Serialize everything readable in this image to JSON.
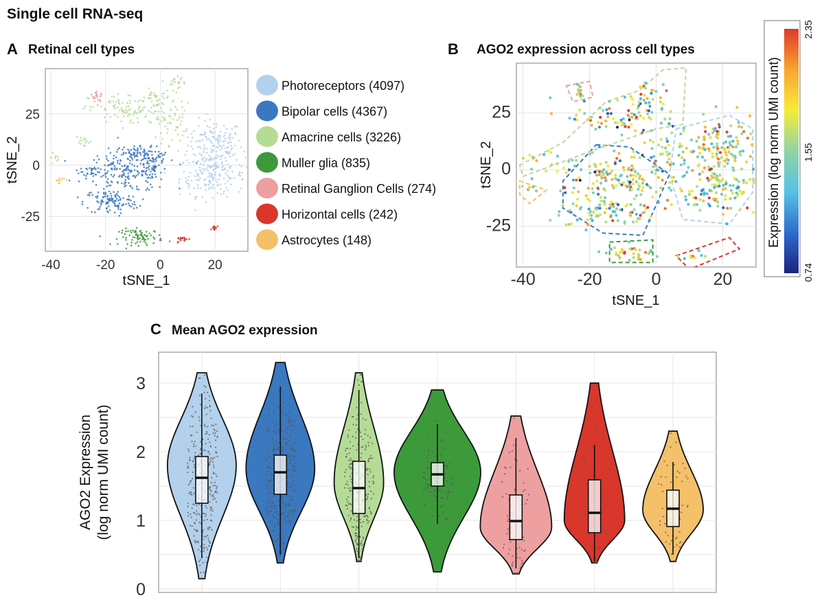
{
  "title": "Single cell RNA-seq",
  "colors": {
    "photoreceptors": "#b3d1ec",
    "bipolar": "#3a78c0",
    "amacrine": "#b5dc97",
    "muller": "#3c9a3a",
    "rgc": "#ee9fa0",
    "horizontal": "#d9362c",
    "astrocytes": "#f5c06a"
  },
  "panels": {
    "a": {
      "letter": "A",
      "title": "Retinal cell types"
    },
    "b": {
      "letter": "B",
      "title": "AGO2 expression across cell types"
    },
    "c": {
      "letter": "C",
      "title": "Mean AGO2 expression"
    }
  },
  "chart_data": [
    {
      "type": "scatter",
      "panel": "A",
      "title": "Retinal cell types",
      "xlabel": "tSNE_1",
      "ylabel": "tSNE_2",
      "xlim": [
        -42,
        32
      ],
      "ylim": [
        -42,
        47
      ],
      "xticks": [
        -40,
        -20,
        0,
        20
      ],
      "yticks": [
        -25,
        0,
        25
      ],
      "grid": true,
      "legend_position": "right",
      "legend": [
        {
          "name": "Photoreceptors (4097)",
          "color_key": "photoreceptors"
        },
        {
          "name": "Bipolar cells (4367)",
          "color_key": "bipolar"
        },
        {
          "name": "Amacrine cells (3226)",
          "color_key": "amacrine"
        },
        {
          "name": "Muller glia (835)",
          "color_key": "muller"
        },
        {
          "name": "Retinal Ganglion Cells (274)",
          "color_key": "rgc"
        },
        {
          "name": "Horizontal cells (242)",
          "color_key": "horizontal"
        },
        {
          "name": "Astrocytes (148)",
          "color_key": "astrocytes"
        }
      ],
      "clusters": [
        {
          "color_key": "photoreceptors",
          "cx": 20,
          "cy": 10,
          "sx": 5,
          "sy": 6,
          "n": 160
        },
        {
          "color_key": "photoreceptors",
          "cx": 19,
          "cy": -5,
          "sx": 6,
          "sy": 5,
          "n": 180
        },
        {
          "color_key": "bipolar",
          "cx": -12,
          "cy": -3,
          "sx": 8,
          "sy": 5,
          "n": 200
        },
        {
          "color_key": "bipolar",
          "cx": -18,
          "cy": -18,
          "sx": 5,
          "sy": 3,
          "n": 110
        },
        {
          "color_key": "bipolar",
          "cx": -3,
          "cy": 2,
          "sx": 3,
          "sy": 4,
          "n": 60
        },
        {
          "color_key": "bipolar",
          "cx": -25,
          "cy": -3,
          "sx": 1.5,
          "sy": 1.2,
          "n": 25
        },
        {
          "color_key": "bipolar",
          "cx": -10,
          "cy": 6,
          "sx": 4,
          "sy": 1.5,
          "n": 50
        },
        {
          "color_key": "amacrine",
          "cx": -10,
          "cy": 27,
          "sx": 8,
          "sy": 4,
          "n": 130
        },
        {
          "color_key": "amacrine",
          "cx": 5,
          "cy": 20,
          "sx": 3,
          "sy": 5,
          "n": 45
        },
        {
          "color_key": "amacrine",
          "cx": -2,
          "cy": 33,
          "sx": 3,
          "sy": 2,
          "n": 25
        },
        {
          "color_key": "amacrine",
          "cx": 6,
          "cy": 41,
          "sx": 3,
          "sy": 1.5,
          "n": 20
        },
        {
          "color_key": "amacrine",
          "cx": -28,
          "cy": 11,
          "sx": 1.5,
          "sy": 1.3,
          "n": 15
        },
        {
          "color_key": "amacrine",
          "cx": -39,
          "cy": 4,
          "sx": 1,
          "sy": 1.2,
          "n": 10
        },
        {
          "color_key": "muller",
          "cx": -7,
          "cy": -35,
          "sx": 4,
          "sy": 2,
          "n": 80
        },
        {
          "color_key": "rgc",
          "cx": -23,
          "cy": 33,
          "sx": 1.2,
          "sy": 1.2,
          "n": 20
        },
        {
          "color_key": "horizontal",
          "cx": 8,
          "cy": -36,
          "sx": 1.3,
          "sy": 0.6,
          "n": 18
        },
        {
          "color_key": "horizontal",
          "cx": 20,
          "cy": -31,
          "sx": 0.6,
          "sy": 0.9,
          "n": 12
        },
        {
          "color_key": "astrocytes",
          "cx": -37,
          "cy": -7,
          "sx": 1,
          "sy": 0.8,
          "n": 10
        }
      ]
    },
    {
      "type": "scatter",
      "panel": "B",
      "title": "AGO2 expression across cell types",
      "xlabel": "tSNE_1",
      "ylabel": "tSNE_2",
      "xlim": [
        -42,
        30
      ],
      "ylim": [
        -43,
        47
      ],
      "xticks": [
        -40,
        -20,
        0,
        20
      ],
      "yticks": [
        -25,
        0,
        25
      ],
      "grid": true,
      "colorbar": {
        "label": "Expression (log norm UMI count)",
        "min": 0.74,
        "max": 2.35,
        "ticks": [
          "0.74",
          "1.55",
          "2.35"
        ],
        "stops": [
          "#1a237e",
          "#2d6dcf",
          "#58c2e4",
          "#8fd3a6",
          "#f7ec3a",
          "#f9a431",
          "#dd3a28"
        ]
      },
      "cluster_outlines": [
        {
          "color_key": "photoreceptors",
          "points": [
            [
              6,
              18
            ],
            [
              22,
              24
            ],
            [
              29,
              18
            ],
            [
              29,
              -10
            ],
            [
              22,
              -24
            ],
            [
              8,
              -22
            ],
            [
              4,
              -2
            ]
          ]
        },
        {
          "color_key": "bipolar",
          "points": [
            [
              -18,
              11
            ],
            [
              -8,
              10
            ],
            [
              4,
              -2
            ],
            [
              -4,
              -29
            ],
            [
              -16,
              -28
            ],
            [
              -28,
              -17
            ],
            [
              -28,
              -5
            ]
          ]
        },
        {
          "color_key": "amacrine",
          "points": [
            [
              -41,
              2
            ],
            [
              -28,
              12
            ],
            [
              -15,
              30
            ],
            [
              -5,
              35
            ],
            [
              2,
              44
            ],
            [
              9,
              45
            ],
            [
              8,
              20
            ],
            [
              0,
              18
            ],
            [
              -18,
              9
            ],
            [
              -40,
              -3
            ]
          ]
        },
        {
          "color_key": "rgc",
          "points": [
            [
              -27,
              37
            ],
            [
              -20,
              39
            ],
            [
              -19,
              32
            ],
            [
              -25,
              30
            ]
          ]
        },
        {
          "color_key": "muller",
          "points": [
            [
              -14,
              -32
            ],
            [
              -1,
              -31
            ],
            [
              -1,
              -41
            ],
            [
              -14,
              -41
            ]
          ]
        },
        {
          "color_key": "horizontal",
          "points": [
            [
              6,
              -38
            ],
            [
              22,
              -30
            ],
            [
              25,
              -35
            ],
            [
              10,
              -44
            ]
          ]
        },
        {
          "color_key": "astrocytes",
          "points": [
            [
              -41,
              -5
            ],
            [
              -33,
              -9
            ],
            [
              -38,
              -15
            ],
            [
              -41,
              -11
            ]
          ]
        }
      ],
      "clusters": [
        {
          "cx": 20,
          "cy": 10,
          "sx": 5,
          "sy": 6,
          "n": 110
        },
        {
          "cx": 18,
          "cy": -8,
          "sx": 6,
          "sy": 6,
          "n": 140
        },
        {
          "cx": -12,
          "cy": -3,
          "sx": 8,
          "sy": 5,
          "n": 130
        },
        {
          "cx": -14,
          "cy": -18,
          "sx": 7,
          "sy": 4,
          "n": 90
        },
        {
          "cx": -10,
          "cy": 24,
          "sx": 9,
          "sy": 5,
          "n": 90
        },
        {
          "cx": 3,
          "cy": 6,
          "sx": 4,
          "sy": 6,
          "n": 50
        },
        {
          "cx": -2,
          "cy": 32,
          "sx": 3,
          "sy": 3,
          "n": 20
        },
        {
          "cx": -23,
          "cy": 35,
          "sx": 1.2,
          "sy": 1.2,
          "n": 12
        },
        {
          "cx": -7,
          "cy": -37,
          "sx": 4,
          "sy": 1.8,
          "n": 35
        },
        {
          "cx": 11,
          "cy": -39,
          "sx": 1.5,
          "sy": 1,
          "n": 10
        },
        {
          "cx": -38,
          "cy": -9,
          "sx": 1,
          "sy": 1,
          "n": 6
        },
        {
          "cx": -33,
          "cy": 4,
          "sx": 5,
          "sy": 4,
          "n": 18
        }
      ]
    },
    {
      "type": "violin",
      "panel": "C",
      "title": "Mean AGO2 expression",
      "ylabel": "AGO2  Expression\n(log norm UMI count)",
      "ylabel_lines": [
        "AGO2  Expression",
        "(log norm UMI count)"
      ],
      "ylim": [
        -0.05,
        3.45
      ],
      "yticks": [
        0,
        1,
        2,
        3
      ],
      "grid": true,
      "violins": [
        {
          "color_key": "photoreceptors",
          "min": 0.15,
          "max": 3.15,
          "q1": 1.25,
          "median": 1.62,
          "q3": 1.93,
          "wmin": 0.45,
          "wmax": 2.85,
          "peak": 1.8,
          "maxwidth": 50,
          "n_points": 300
        },
        {
          "color_key": "bipolar",
          "min": 0.38,
          "max": 3.3,
          "q1": 1.38,
          "median": 1.7,
          "q3": 1.95,
          "wmin": 0.5,
          "wmax": 2.95,
          "peak": 1.75,
          "maxwidth": 50,
          "n_points": 300
        },
        {
          "color_key": "amacrine",
          "min": 0.4,
          "max": 3.15,
          "q1": 1.1,
          "median": 1.47,
          "q3": 1.86,
          "wmin": 0.45,
          "wmax": 2.9,
          "peak": 1.55,
          "maxwidth": 36,
          "n_points": 250
        },
        {
          "color_key": "muller",
          "min": 0.25,
          "max": 2.9,
          "q1": 1.5,
          "median": 1.67,
          "q3": 1.84,
          "wmin": 0.95,
          "wmax": 2.4,
          "peak": 1.7,
          "maxwidth": 63,
          "n_points": 90
        },
        {
          "color_key": "rgc",
          "min": 0.22,
          "max": 2.52,
          "q1": 0.72,
          "median": 0.99,
          "q3": 1.37,
          "wmin": 0.3,
          "wmax": 2.2,
          "peak": 0.9,
          "maxwidth": 52,
          "n_points": 80
        },
        {
          "color_key": "horizontal",
          "min": 0.38,
          "max": 3.0,
          "q1": 0.82,
          "median": 1.11,
          "q3": 1.59,
          "wmin": 0.4,
          "wmax": 2.1,
          "peak": 1.0,
          "maxwidth": 44,
          "n_points": 70
        },
        {
          "color_key": "astrocytes",
          "min": 0.4,
          "max": 2.3,
          "q1": 0.91,
          "median": 1.17,
          "q3": 1.44,
          "wmin": 0.5,
          "wmax": 1.85,
          "peak": 1.15,
          "maxwidth": 44,
          "n_points": 55
        }
      ]
    }
  ]
}
